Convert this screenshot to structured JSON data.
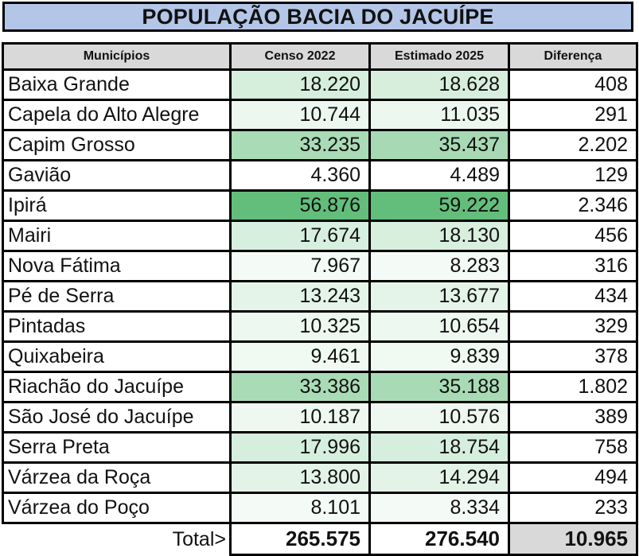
{
  "title": "POPULAÇÃO BACIA DO JACUÍPE",
  "colors": {
    "header_bg": "#d9d9d9",
    "title_bg": "#b4c6e7",
    "scale_low": "#ffffff",
    "scale_high": "#63be7b"
  },
  "chart_data": {
    "type": "table",
    "title": "POPULAÇÃO BACIA DO JACUÍPE",
    "columns": [
      "Municípios",
      "Censo 2022",
      "Estimado 2025",
      "Diferença"
    ],
    "rows": [
      {
        "municipio": "Baixa Grande",
        "censo": "18.220",
        "estimado": "18.628",
        "diferenca": "408",
        "censo_v": 18220,
        "estimado_v": 18628
      },
      {
        "municipio": "Capela do Alto Alegre",
        "censo": "10.744",
        "estimado": "11.035",
        "diferenca": "291",
        "censo_v": 10744,
        "estimado_v": 11035
      },
      {
        "municipio": "Capim Grosso",
        "censo": "33.235",
        "estimado": "35.437",
        "diferenca": "2.202",
        "censo_v": 33235,
        "estimado_v": 35437
      },
      {
        "municipio": "Gavião",
        "censo": "4.360",
        "estimado": "4.489",
        "diferenca": "129",
        "censo_v": 4360,
        "estimado_v": 4489
      },
      {
        "municipio": "Ipirá",
        "censo": "56.876",
        "estimado": "59.222",
        "diferenca": "2.346",
        "censo_v": 56876,
        "estimado_v": 59222
      },
      {
        "municipio": "Mairi",
        "censo": "17.674",
        "estimado": "18.130",
        "diferenca": "456",
        "censo_v": 17674,
        "estimado_v": 18130
      },
      {
        "municipio": "Nova Fátima",
        "censo": "7.967",
        "estimado": "8.283",
        "diferenca": "316",
        "censo_v": 7967,
        "estimado_v": 8283
      },
      {
        "municipio": "Pé de Serra",
        "censo": "13.243",
        "estimado": "13.677",
        "diferenca": "434",
        "censo_v": 13243,
        "estimado_v": 13677
      },
      {
        "municipio": "Pintadas",
        "censo": "10.325",
        "estimado": "10.654",
        "diferenca": "329",
        "censo_v": 10325,
        "estimado_v": 10654
      },
      {
        "municipio": "Quixabeira",
        "censo": "9.461",
        "estimado": "9.839",
        "diferenca": "378",
        "censo_v": 9461,
        "estimado_v": 9839
      },
      {
        "municipio": "Riachão do Jacuípe",
        "censo": "33.386",
        "estimado": "35.188",
        "diferenca": "1.802",
        "censo_v": 33386,
        "estimado_v": 35188
      },
      {
        "municipio": "São José do Jacuípe",
        "censo": "10.187",
        "estimado": "10.576",
        "diferenca": "389",
        "censo_v": 10187,
        "estimado_v": 10576
      },
      {
        "municipio": "Serra Preta",
        "censo": "17.996",
        "estimado": "18.754",
        "diferenca": "758",
        "censo_v": 17996,
        "estimado_v": 18754
      },
      {
        "municipio": "Várzea da Roça",
        "censo": "13.800",
        "estimado": "14.294",
        "diferenca": "494",
        "censo_v": 13800,
        "estimado_v": 14294
      },
      {
        "municipio": "Várzea do Poço",
        "censo": "8.101",
        "estimado": "8.334",
        "diferenca": "233",
        "censo_v": 8101,
        "estimado_v": 8334
      }
    ],
    "total": {
      "label": "Total>",
      "censo": "265.575",
      "estimado": "276.540",
      "diferenca": "10.965"
    }
  }
}
